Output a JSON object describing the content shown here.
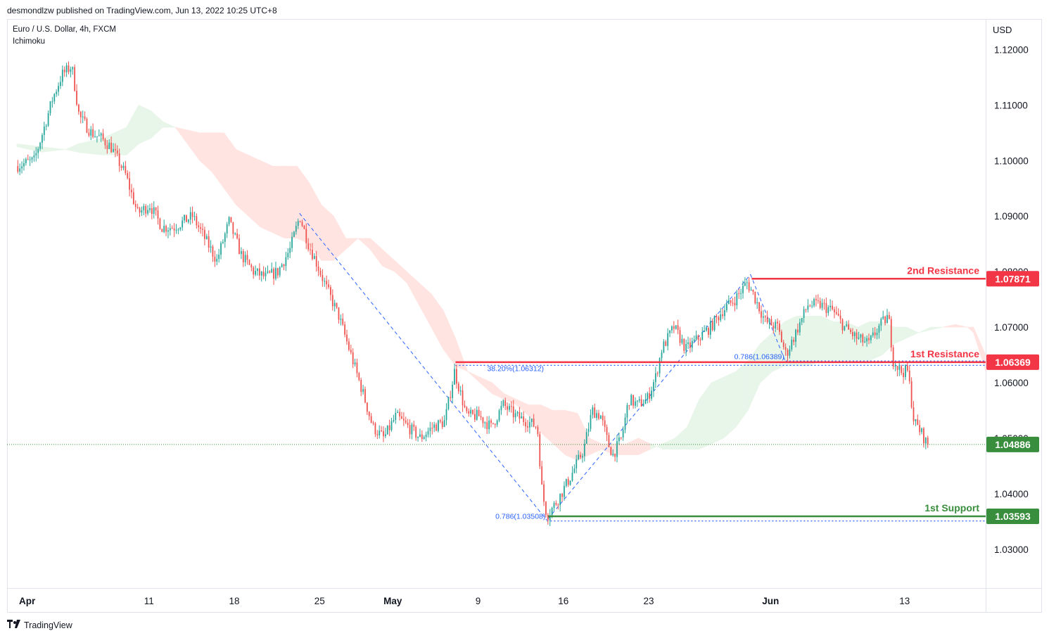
{
  "header": {
    "publish_line": "desmondlzw published on TradingView.com, Jun 13, 2022 10:25 UTC+8",
    "symbol": "Euro / U.S. Dollar, 4h, FXCM",
    "indicator": "Ichimoku"
  },
  "branding": {
    "name": "TradingView",
    "logo_icon": "tradingview-logo-icon"
  },
  "colors": {
    "bull": "#26a69a",
    "bear": "#ef5350",
    "resistance": "#f23645",
    "support": "#388e3c",
    "fib": "#2962ff",
    "cloud_bull": "#e8f5e9",
    "cloud_bear": "#ffe4e1",
    "last_price": "#388e3c"
  },
  "chart_data": {
    "type": "candlestick",
    "interval": "4h",
    "currency_label": "USD",
    "y_range": [
      1.023,
      1.1255
    ],
    "y_ticks": [
      "1.12000",
      "1.11000",
      "1.10000",
      "1.09000",
      "1.08000",
      "1.07000",
      "1.06000",
      "1.05000",
      "1.04000",
      "1.03000"
    ],
    "x_ticks": [
      {
        "label": "Apr",
        "t": 0.85,
        "bold": true
      },
      {
        "label": "11",
        "t": 10.85
      },
      {
        "label": "18",
        "t": 17.85
      },
      {
        "label": "25",
        "t": 24.85
      },
      {
        "label": "May",
        "t": 30.85,
        "bold": true
      },
      {
        "label": "9",
        "t": 37.85
      },
      {
        "label": "16",
        "t": 44.85
      },
      {
        "label": "23",
        "t": 51.85
      },
      {
        "label": "Jun",
        "t": 61.85,
        "bold": true
      },
      {
        "label": "13",
        "t": 72.85
      }
    ],
    "price_path": [
      [
        0,
        1.099
      ],
      [
        1.5,
        1.1
      ],
      [
        2.2,
        1.105
      ],
      [
        3.0,
        1.111
      ],
      [
        3.8,
        1.1155
      ],
      [
        4.6,
        1.117
      ],
      [
        5.2,
        1.108
      ],
      [
        6.2,
        1.105
      ],
      [
        7.0,
        1.104
      ],
      [
        7.8,
        1.1025
      ],
      [
        9.0,
        1.0975
      ],
      [
        10.0,
        1.0905
      ],
      [
        11.0,
        1.092
      ],
      [
        12.0,
        1.088
      ],
      [
        13.0,
        1.088
      ],
      [
        14.5,
        1.09
      ],
      [
        15.5,
        1.086
      ],
      [
        16.5,
        1.082
      ],
      [
        17.5,
        1.089
      ],
      [
        18.5,
        1.083
      ],
      [
        19.5,
        1.08
      ],
      [
        20.5,
        1.079
      ],
      [
        21.5,
        1.08
      ],
      [
        22.5,
        1.084
      ],
      [
        23.3,
        1.09
      ],
      [
        24.0,
        1.085
      ],
      [
        24.6,
        1.082
      ],
      [
        25.5,
        1.077
      ],
      [
        26.5,
        1.072
      ],
      [
        27.5,
        1.065
      ],
      [
        28.5,
        1.058
      ],
      [
        29.3,
        1.052
      ],
      [
        30.2,
        1.05
      ],
      [
        31.2,
        1.054
      ],
      [
        32.2,
        1.052
      ],
      [
        33.2,
        1.05
      ],
      [
        34.2,
        1.052
      ],
      [
        35.2,
        1.053
      ],
      [
        36.0,
        1.062
      ],
      [
        37.0,
        1.054
      ],
      [
        38.0,
        1.054
      ],
      [
        39.0,
        1.052
      ],
      [
        40.0,
        1.056
      ],
      [
        41.0,
        1.054
      ],
      [
        42.0,
        1.053
      ],
      [
        42.8,
        1.052
      ],
      [
        43.2,
        1.04
      ],
      [
        43.6,
        1.036
      ],
      [
        44.5,
        1.039
      ],
      [
        45.5,
        1.043
      ],
      [
        46.6,
        1.048
      ],
      [
        47.3,
        1.055
      ],
      [
        48.0,
        1.054
      ],
      [
        48.6,
        1.049
      ],
      [
        49.0,
        1.047
      ],
      [
        49.7,
        1.05
      ],
      [
        50.3,
        1.057
      ],
      [
        51.0,
        1.056
      ],
      [
        51.8,
        1.057
      ],
      [
        52.5,
        1.061
      ],
      [
        53.0,
        1.066
      ],
      [
        54.0,
        1.07
      ],
      [
        55.0,
        1.066
      ],
      [
        56.0,
        1.068
      ],
      [
        57.0,
        1.07
      ],
      [
        58.0,
        1.073
      ],
      [
        59.0,
        1.075
      ],
      [
        60.0,
        1.078
      ],
      [
        60.5,
        1.076
      ],
      [
        61.5,
        1.071
      ],
      [
        62.5,
        1.07
      ],
      [
        63.2,
        1.065
      ],
      [
        64.0,
        1.069
      ],
      [
        65.0,
        1.074
      ],
      [
        66.0,
        1.074
      ],
      [
        67.0,
        1.073
      ],
      [
        68.0,
        1.07
      ],
      [
        69.0,
        1.068
      ],
      [
        70.0,
        1.067
      ],
      [
        70.8,
        1.07
      ],
      [
        71.6,
        1.072
      ],
      [
        72.0,
        1.064
      ],
      [
        72.6,
        1.062
      ],
      [
        73.2,
        1.062
      ],
      [
        73.7,
        1.053
      ],
      [
        74.3,
        1.051
      ],
      [
        74.8,
        1.0488
      ]
    ],
    "cloud": {
      "span_a": [
        [
          0,
          1.103
        ],
        [
          2,
          1.1025
        ],
        [
          4,
          1.102
        ],
        [
          5,
          1.103
        ],
        [
          7,
          1.104
        ],
        [
          9,
          1.106
        ],
        [
          10,
          1.11
        ],
        [
          11,
          1.109
        ],
        [
          12,
          1.107
        ],
        [
          13,
          1.106
        ],
        [
          15,
          1.1
        ],
        [
          16,
          1.098
        ],
        [
          17,
          1.095
        ],
        [
          18,
          1.092
        ],
        [
          19,
          1.09
        ],
        [
          20,
          1.088
        ],
        [
          21,
          1.087
        ],
        [
          22,
          1.086
        ],
        [
          23,
          1.086
        ],
        [
          24,
          1.085
        ],
        [
          25,
          1.082
        ],
        [
          26,
          1.082
        ],
        [
          27,
          1.084
        ],
        [
          28,
          1.086
        ],
        [
          29,
          1.084
        ],
        [
          30,
          1.081
        ],
        [
          31,
          1.08
        ],
        [
          32,
          1.078
        ],
        [
          33,
          1.074
        ],
        [
          34,
          1.07
        ],
        [
          35,
          1.066
        ],
        [
          36,
          1.063
        ],
        [
          37,
          1.062
        ],
        [
          38,
          1.06
        ],
        [
          39,
          1.058
        ],
        [
          40,
          1.057
        ],
        [
          41,
          1.056
        ],
        [
          42,
          1.054
        ],
        [
          43,
          1.051
        ],
        [
          44,
          1.049
        ],
        [
          45,
          1.047
        ],
        [
          46,
          1.046
        ],
        [
          47,
          1.047
        ],
        [
          48,
          1.048
        ],
        [
          49,
          1.047
        ],
        [
          50,
          1.047
        ],
        [
          51,
          1.047
        ],
        [
          52,
          1.048
        ],
        [
          53,
          1.049
        ],
        [
          54,
          1.05
        ],
        [
          55,
          1.052
        ],
        [
          56,
          1.057
        ],
        [
          57,
          1.06
        ],
        [
          58,
          1.061
        ],
        [
          59,
          1.062
        ],
        [
          60,
          1.064
        ],
        [
          61,
          1.067
        ],
        [
          62,
          1.069
        ],
        [
          63,
          1.071
        ],
        [
          64,
          1.072
        ],
        [
          65,
          1.072
        ],
        [
          66,
          1.072
        ],
        [
          67,
          1.071
        ],
        [
          68,
          1.071
        ],
        [
          69,
          1.07
        ],
        [
          70,
          1.071
        ],
        [
          71,
          1.071
        ],
        [
          72,
          1.07
        ],
        [
          73,
          1.07
        ],
        [
          74,
          1.069
        ],
        [
          75,
          1.07
        ],
        [
          76,
          1.07
        ],
        [
          77,
          1.07
        ],
        [
          78,
          1.07
        ],
        [
          78.5,
          1.069
        ],
        [
          79.5,
          1.062
        ]
      ],
      "span_b": [
        [
          0,
          1.1025
        ],
        [
          2,
          1.1015
        ],
        [
          4,
          1.102
        ],
        [
          5,
          1.1015
        ],
        [
          7,
          1.101
        ],
        [
          9,
          1.101
        ],
        [
          10,
          1.103
        ],
        [
          11,
          1.104
        ],
        [
          12,
          1.106
        ],
        [
          13,
          1.106
        ],
        [
          15,
          1.105
        ],
        [
          16,
          1.105
        ],
        [
          17,
          1.105
        ],
        [
          18,
          1.102
        ],
        [
          19,
          1.101
        ],
        [
          20,
          1.1
        ],
        [
          21,
          1.099
        ],
        [
          22,
          1.099
        ],
        [
          23,
          1.099
        ],
        [
          24,
          1.096
        ],
        [
          25,
          1.092
        ],
        [
          26,
          1.09
        ],
        [
          27,
          1.086
        ],
        [
          28,
          1.086
        ],
        [
          29,
          1.086
        ],
        [
          30,
          1.084
        ],
        [
          31,
          1.082
        ],
        [
          32,
          1.08
        ],
        [
          33,
          1.078
        ],
        [
          34,
          1.076
        ],
        [
          35,
          1.073
        ],
        [
          36,
          1.068
        ],
        [
          37,
          1.062
        ],
        [
          38,
          1.061
        ],
        [
          39,
          1.06
        ],
        [
          40,
          1.058
        ],
        [
          41,
          1.057
        ],
        [
          42,
          1.056
        ],
        [
          43,
          1.056
        ],
        [
          44,
          1.055
        ],
        [
          45,
          1.055
        ],
        [
          46,
          1.0545
        ],
        [
          47,
          1.05
        ],
        [
          48,
          1.049
        ],
        [
          49,
          1.049
        ],
        [
          50,
          1.049
        ],
        [
          51,
          1.05
        ],
        [
          52,
          1.049
        ],
        [
          53,
          1.048
        ],
        [
          54,
          1.048
        ],
        [
          55,
          1.048
        ],
        [
          56,
          1.048
        ],
        [
          57,
          1.049
        ],
        [
          58,
          1.05
        ],
        [
          59,
          1.052
        ],
        [
          60,
          1.055
        ],
        [
          61,
          1.06
        ],
        [
          62,
          1.062
        ],
        [
          63,
          1.063
        ],
        [
          64,
          1.063
        ],
        [
          65,
          1.063
        ],
        [
          66,
          1.064
        ],
        [
          67,
          1.064
        ],
        [
          68,
          1.064
        ],
        [
          69,
          1.064
        ],
        [
          70,
          1.064
        ],
        [
          71,
          1.065
        ],
        [
          72,
          1.067
        ],
        [
          73,
          1.068
        ],
        [
          74,
          1.069
        ],
        [
          75,
          1.0695
        ],
        [
          76,
          1.07
        ],
        [
          77,
          1.0705
        ],
        [
          78,
          1.07
        ],
        [
          78.5,
          1.07
        ],
        [
          79.5,
          1.065
        ]
      ]
    },
    "levels": [
      {
        "name": "2nd Resistance",
        "value": 1.07871,
        "label": "1.07871",
        "from_t": 60.3,
        "role": "resistance"
      },
      {
        "name": "1st Resistance",
        "value": 1.06369,
        "label": "1.06369",
        "from_t": 36.0,
        "role": "resistance"
      },
      {
        "name": "1st Support",
        "value": 1.03593,
        "label": "1.03593",
        "from_t": 43.6,
        "role": "support"
      }
    ],
    "last_price": {
      "value": 1.04886,
      "label": "1.04886"
    },
    "fib_lines": [
      {
        "label": "38.20%(1.06312)",
        "value": 1.06312,
        "from_t": 36.0,
        "to_t": 79.5
      },
      {
        "label": "0.786(1.06389)",
        "value": 1.06389,
        "from_t": 63.1,
        "to_t": 79.5
      },
      {
        "label": "0.786(1.03508)",
        "value": 1.03508,
        "from_t": 43.5,
        "to_t": 79.5
      }
    ],
    "fib_diagonals": [
      [
        [
          23.2,
          1.0905
        ],
        [
          43.5,
          1.0352
        ]
      ],
      [
        [
          43.6,
          1.0355
        ],
        [
          60.2,
          1.0795
        ]
      ],
      [
        [
          60.2,
          1.0795
        ],
        [
          63.1,
          1.0636
        ]
      ]
    ]
  }
}
